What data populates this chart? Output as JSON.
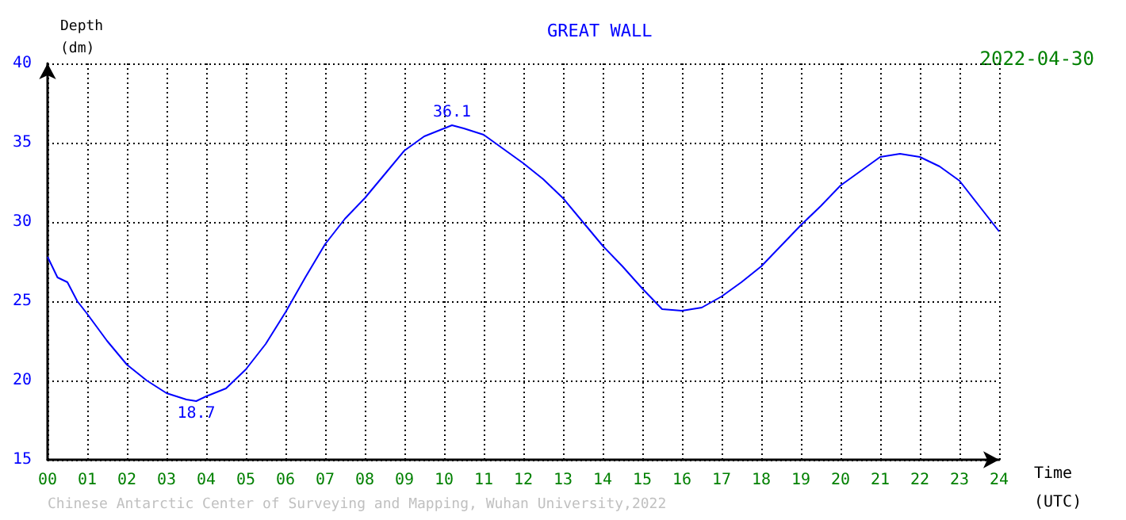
{
  "chart_data": {
    "type": "line",
    "title": "GREAT WALL",
    "xlabel": "Time (UTC)",
    "ylabel": "Depth (dm)",
    "x": [
      0,
      0.25,
      0.5,
      0.75,
      1,
      1.5,
      2,
      2.5,
      3,
      3.5,
      3.75,
      4,
      4.5,
      5,
      5.5,
      6,
      6.5,
      7,
      7.5,
      8,
      8.5,
      9,
      9.5,
      10,
      10.2,
      10.5,
      11,
      11.5,
      12,
      12.5,
      13,
      13.5,
      14,
      14.5,
      15,
      15.5,
      16,
      16.5,
      17,
      17.5,
      18,
      18.5,
      19,
      19.5,
      20,
      20.5,
      21,
      21.5,
      22,
      22.5,
      23,
      23.5,
      24
    ],
    "series": [
      {
        "color": "#0000ff",
        "values": [
          27.8,
          26.5,
          26.2,
          25,
          24.2,
          22.5,
          21,
          20,
          19.2,
          18.8,
          18.7,
          19,
          19.5,
          20.7,
          22.3,
          24.3,
          26.5,
          28.6,
          30.2,
          31.5,
          33,
          34.5,
          35.4,
          35.9,
          36.1,
          35.9,
          35.5,
          34.6,
          33.7,
          32.7,
          31.5,
          30,
          28.5,
          27.2,
          25.8,
          24.5,
          24.4,
          24.6,
          25.3,
          26.2,
          27.2,
          28.5,
          29.8,
          31,
          32.3,
          33.2,
          34.1,
          34.3,
          34.1,
          33.5,
          32.6,
          31,
          29.4
        ]
      }
    ],
    "xlim": [
      0,
      24
    ],
    "xticks": [
      {
        "value": 0,
        "label": "00"
      },
      {
        "value": 1,
        "label": "01"
      },
      {
        "value": 2,
        "label": "02"
      },
      {
        "value": 3,
        "label": "03"
      },
      {
        "value": 4,
        "label": "04"
      },
      {
        "value": 5,
        "label": "05"
      },
      {
        "value": 6,
        "label": "06"
      },
      {
        "value": 7,
        "label": "07"
      },
      {
        "value": 8,
        "label": "08"
      },
      {
        "value": 9,
        "label": "09"
      },
      {
        "value": 10,
        "label": "10"
      },
      {
        "value": 11,
        "label": "11"
      },
      {
        "value": 12,
        "label": "12"
      },
      {
        "value": 13,
        "label": "13"
      },
      {
        "value": 14,
        "label": "14"
      },
      {
        "value": 15,
        "label": "15"
      },
      {
        "value": 16,
        "label": "16"
      },
      {
        "value": 17,
        "label": "17"
      },
      {
        "value": 18,
        "label": "18"
      },
      {
        "value": 19,
        "label": "19"
      },
      {
        "value": 20,
        "label": "20"
      },
      {
        "value": 21,
        "label": "21"
      },
      {
        "value": 22,
        "label": "22"
      },
      {
        "value": 23,
        "label": "23"
      },
      {
        "value": 24,
        "label": "24"
      }
    ],
    "ylim": [
      15,
      40
    ],
    "yticks": [
      15,
      20,
      25,
      30,
      35,
      40
    ],
    "grid": true,
    "marker": "none",
    "line_style": "solid",
    "annotations": [
      {
        "text": "36.1",
        "x": 10.2,
        "y": 36.1
      },
      {
        "text": "18.7",
        "x": 3.75,
        "y": 18.7
      },
      "2022-04-30",
      "Chinese Antarctic Center of Surveying and Mapping, Wuhan University,2022"
    ]
  }
}
